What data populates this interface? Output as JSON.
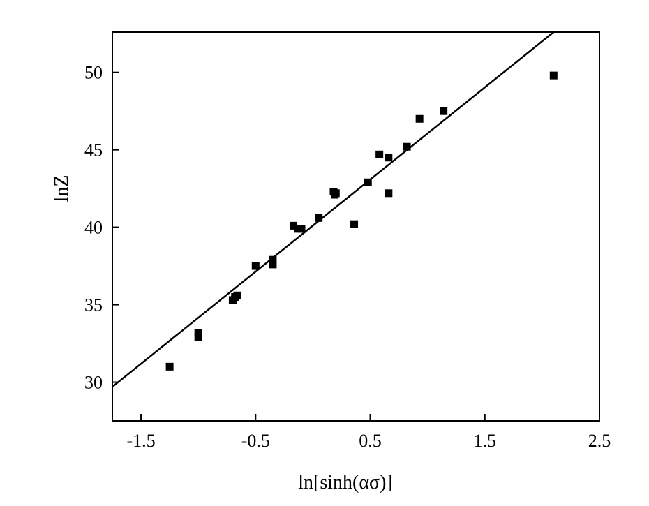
{
  "chart_data": {
    "type": "scatter",
    "xlabel": "ln[sinh(ασ)]",
    "ylabel": "lnZ",
    "xlim": [
      -1.75,
      2.5
    ],
    "ylim": [
      27.5,
      52.6
    ],
    "x_ticks": [
      -1.5,
      -0.5,
      0.5,
      1.5,
      2.5
    ],
    "x_tick_labels": [
      "-1.5",
      "-0.5",
      "0.5",
      "1.5",
      "2.5"
    ],
    "y_ticks": [
      30,
      35,
      40,
      45,
      50
    ],
    "y_tick_labels": [
      "30",
      "35",
      "40",
      "45",
      "50"
    ],
    "grid": false,
    "marker_color": "#000000",
    "series": [
      {
        "type": "scatter",
        "x": [
          -1.25,
          -1.0,
          -1.0,
          -0.7,
          -0.68,
          -0.66,
          -0.5,
          -0.35,
          -0.35,
          -0.17,
          -0.13,
          -0.1,
          0.05,
          0.18,
          0.19,
          0.2,
          0.36,
          0.48,
          0.58,
          0.66,
          0.66,
          0.82,
          0.93,
          1.14,
          2.1
        ],
        "y": [
          31.0,
          32.9,
          33.2,
          35.3,
          35.5,
          35.6,
          37.5,
          37.6,
          37.9,
          40.1,
          39.9,
          39.9,
          40.6,
          42.3,
          42.1,
          42.2,
          40.2,
          42.9,
          44.7,
          44.5,
          42.2,
          45.2,
          47.0,
          47.5,
          49.8
        ]
      },
      {
        "type": "line",
        "x": [
          -1.75,
          2.1
        ],
        "y": [
          29.7,
          52.6
        ]
      }
    ]
  }
}
